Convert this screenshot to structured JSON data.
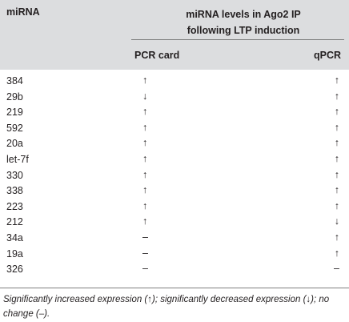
{
  "table": {
    "headers": {
      "id": "miRNA",
      "group_line1": "miRNA levels in Ago2 IP",
      "group_line2": "following LTP induction",
      "pcr_card": "PCR card",
      "qpcr": "qPCR"
    },
    "rows": [
      {
        "id": "384",
        "pcr_card": "↑",
        "qpcr": "↑"
      },
      {
        "id": "29b",
        "pcr_card": "↓",
        "qpcr": "↑"
      },
      {
        "id": "219",
        "pcr_card": "↑",
        "qpcr": "↑"
      },
      {
        "id": "592",
        "pcr_card": "↑",
        "qpcr": "↑"
      },
      {
        "id": "20a",
        "pcr_card": "↑",
        "qpcr": "↑"
      },
      {
        "id": "let-7f",
        "pcr_card": "↑",
        "qpcr": "↑"
      },
      {
        "id": "330",
        "pcr_card": "↑",
        "qpcr": "↑"
      },
      {
        "id": "338",
        "pcr_card": "↑",
        "qpcr": "↑"
      },
      {
        "id": "223",
        "pcr_card": "↑",
        "qpcr": "↑"
      },
      {
        "id": "212",
        "pcr_card": "↑",
        "qpcr": "↓"
      },
      {
        "id": "34a",
        "pcr_card": "–",
        "qpcr": "↑"
      },
      {
        "id": "19a",
        "pcr_card": "–",
        "qpcr": "↑"
      },
      {
        "id": "326",
        "pcr_card": "–",
        "qpcr": "–"
      }
    ],
    "footnote": "Significantly increased expression (↑); significantly decreased expression (↓); no change (–)."
  },
  "colors": {
    "header_background": "#dcdddf",
    "text": "#231f20",
    "rule": "#7f7f7f"
  }
}
